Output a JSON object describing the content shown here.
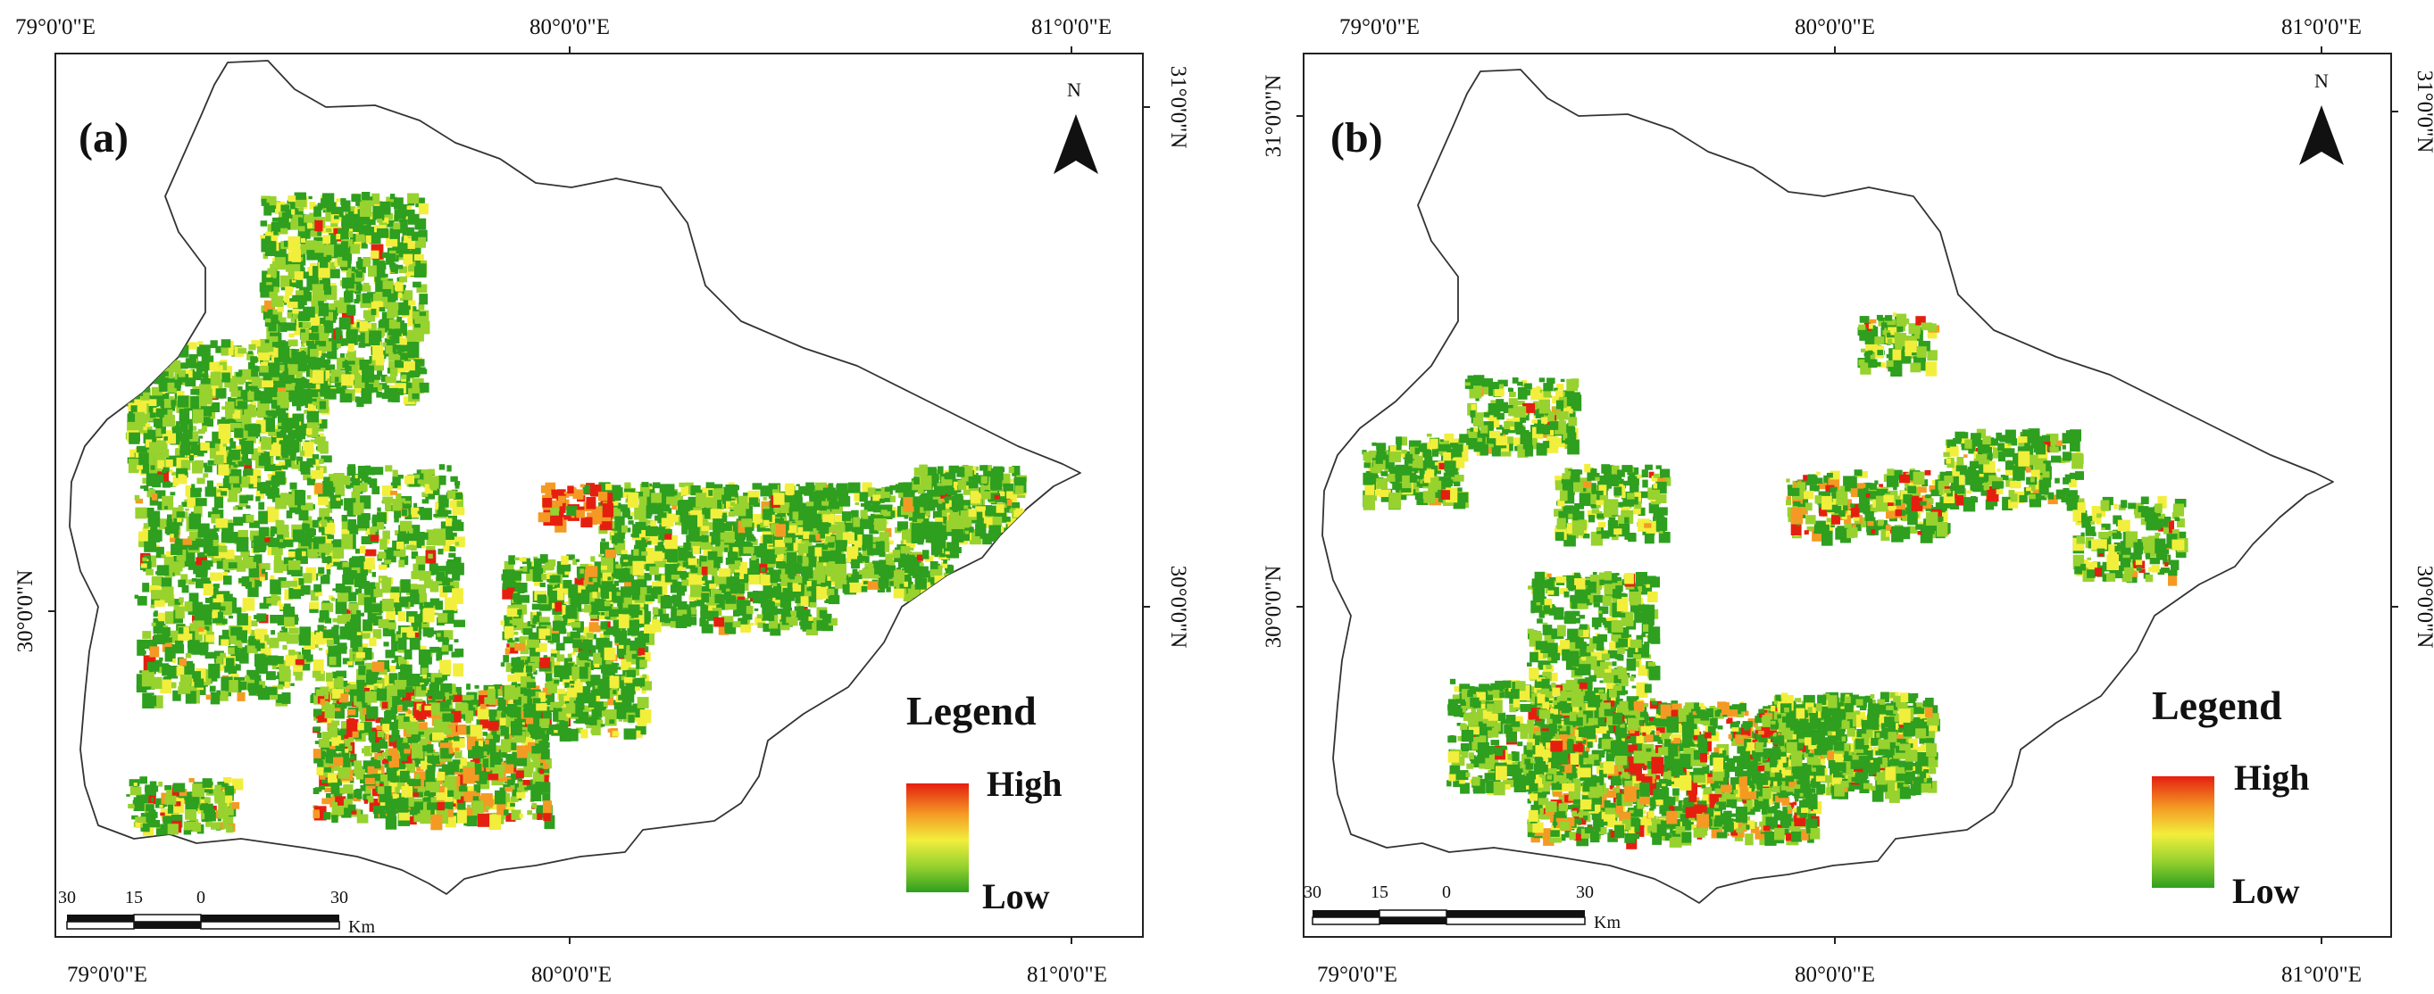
{
  "colors": {
    "high": "#e51f10",
    "mid_high": "#f49a24",
    "mid": "#f2ee3c",
    "mid_low": "#97d22f",
    "low": "#2e9f1f",
    "boundary": "#333333",
    "background": "#ffffff"
  },
  "panels": [
    {
      "label": "(a)",
      "top_lon_labels": [
        "79°0'0\"E",
        "80°0'0\"E",
        "81°0'0\"E"
      ],
      "bottom_lon_labels": [
        "79°0'0\"E",
        "80°0'0\"E",
        "81°0'0\"E"
      ],
      "left_lat_labels": [
        "30°0'0\"N"
      ],
      "right_lat_labels": [
        "31°0'0\"N",
        "30°0'0\"N"
      ],
      "north_arrow_label": "N",
      "legend": {
        "title": "Legend",
        "high_label": "High",
        "low_label": "Low"
      },
      "scale_bar": {
        "ticks": [
          "30",
          "15",
          "0",
          "30"
        ],
        "unit": "Km"
      }
    },
    {
      "label": "(b)",
      "top_lon_labels": [
        "79°0'0\"E",
        "80°0'0\"E",
        "81°0'0\"E"
      ],
      "bottom_lon_labels": [
        "79°0'0\"E",
        "80°0'0\"E",
        "81°0'0\"E"
      ],
      "left_lat_labels": [
        "31°0'0\"N",
        "30°0'0\"N"
      ],
      "right_lat_labels": [
        "31°0'0\"N",
        "30°0'0\"N"
      ],
      "north_arrow_label": "N",
      "legend": {
        "title": "Legend",
        "high_label": "High",
        "low_label": "Low"
      },
      "scale_bar": {
        "ticks": [
          "30",
          "15",
          "0",
          "30"
        ],
        "unit": "Km"
      }
    }
  ]
}
